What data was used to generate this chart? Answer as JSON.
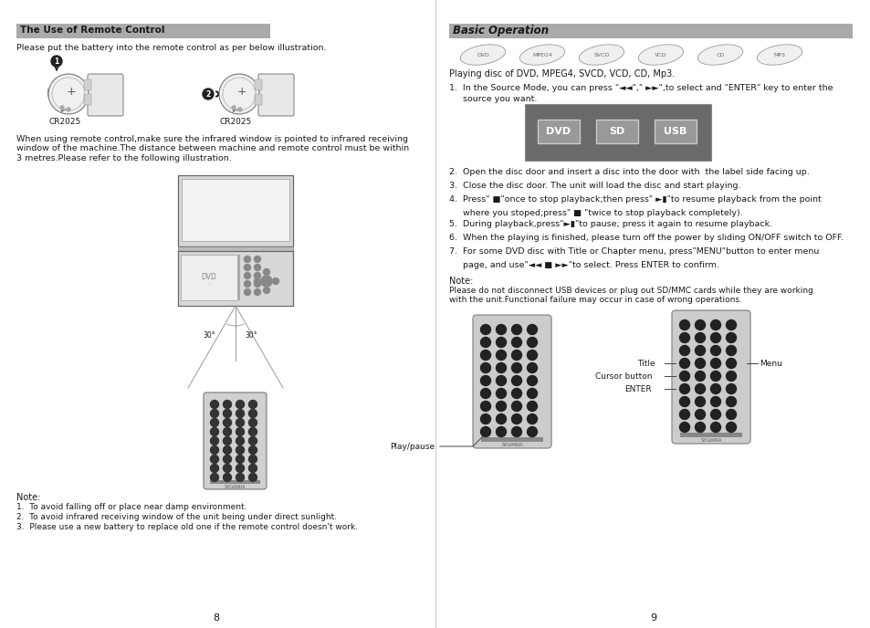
{
  "bg_color": "#ffffff",
  "left_title": "The Use of Remote Control",
  "right_title": "Basic Operation",
  "title_bg": "#aaaaaa",
  "left_intro": "Please put the battery into the remote control as per below illustration.",
  "left_paragraph": "When using remote control,make sure the infrared window is pointed to infrared receiving\nwindow of the machine.The distance between machine and remote control must be within\n3 metres.Please refer to the following illustration.",
  "left_note_title": "Note:",
  "left_notes": [
    "1.  To avoid falling off or place near damp environment.",
    "2.  To avoid infrared receiving window of the unit being under direct sunlight.",
    "3.  Please use a new battery to replace old one if the remote control doesn't work."
  ],
  "right_playing": "Playing disc of DVD, MPEG4, SVCD, VCD, CD, Mp3.",
  "right_item1a": "1.  In the Source Mode, you can press \"◄◄\",\" ►►\",to select and \"ENTER\" key to enter the",
  "right_item1b": "     source you want.",
  "right_item2": "2.  Open the disc door and insert a disc into the door with  the label side facing up.",
  "right_item3": "3.  Close the disc door. The unit will load the disc and start playing.",
  "right_item4a": "4.  Press\" ■\"once to stop playback;then press\" ►▮\"to resume playback from the point",
  "right_item4b": "     where you stoped;press\" ■ \"twice to stop playback completely).",
  "right_item5": "5.  During playback,press\"►▮\"to pause; press it again to resume playback.",
  "right_item6": "6.  When the playing is finished, please turn off the power by sliding ON/OFF switch to OFF.",
  "right_item7a": "7.  For some DVD disc with Title or Chapter menu, press\"MENU\"button to enter menu",
  "right_item7b": "     page, and use\"◄◄ ■ ►►\"to select. Press ENTER to confirm.",
  "source_buttons": [
    "DVD",
    "SD",
    "USB"
  ],
  "right_note_title": "Note:",
  "right_note_body": "Please do not disconnect USB devices or plug out SD/MMC cards while they are working\nwith the unit.Functional failure may occur in case of wrong operations.",
  "label_title": "Title",
  "label_menu": "Menu",
  "label_cursor": "Cursor button",
  "label_enter": "ENTER",
  "label_playpause": "Play/pause",
  "page_left": "8",
  "page_right": "9",
  "disc_labels": [
    "DVD",
    "MPEG4",
    "SVCD",
    "VCD",
    "CD",
    "MP3"
  ]
}
